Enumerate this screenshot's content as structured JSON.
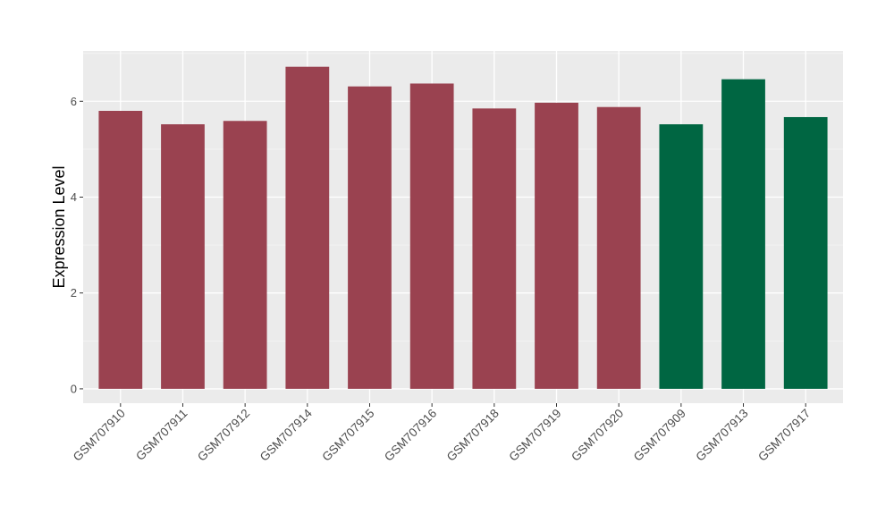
{
  "chart_data": {
    "type": "bar",
    "title": "",
    "xlabel": "",
    "ylabel": "Expression Level",
    "ylim": [
      -0.3,
      7.05
    ],
    "yticks": [
      0,
      2,
      4,
      6
    ],
    "grid": true,
    "panel_background": "#ebebeb",
    "categories": [
      "GSM707910",
      "GSM707911",
      "GSM707912",
      "GSM707914",
      "GSM707915",
      "GSM707916",
      "GSM707918",
      "GSM707919",
      "GSM707920",
      "GSM707909",
      "GSM707913",
      "GSM707917"
    ],
    "values": [
      5.8,
      5.52,
      5.59,
      6.72,
      6.31,
      6.37,
      5.85,
      5.97,
      5.88,
      5.52,
      6.46,
      5.67
    ],
    "bar_groups": [
      0,
      0,
      0,
      0,
      0,
      0,
      0,
      0,
      0,
      1,
      1,
      1
    ],
    "group_colors": [
      "#9a4250",
      "#006642"
    ]
  }
}
